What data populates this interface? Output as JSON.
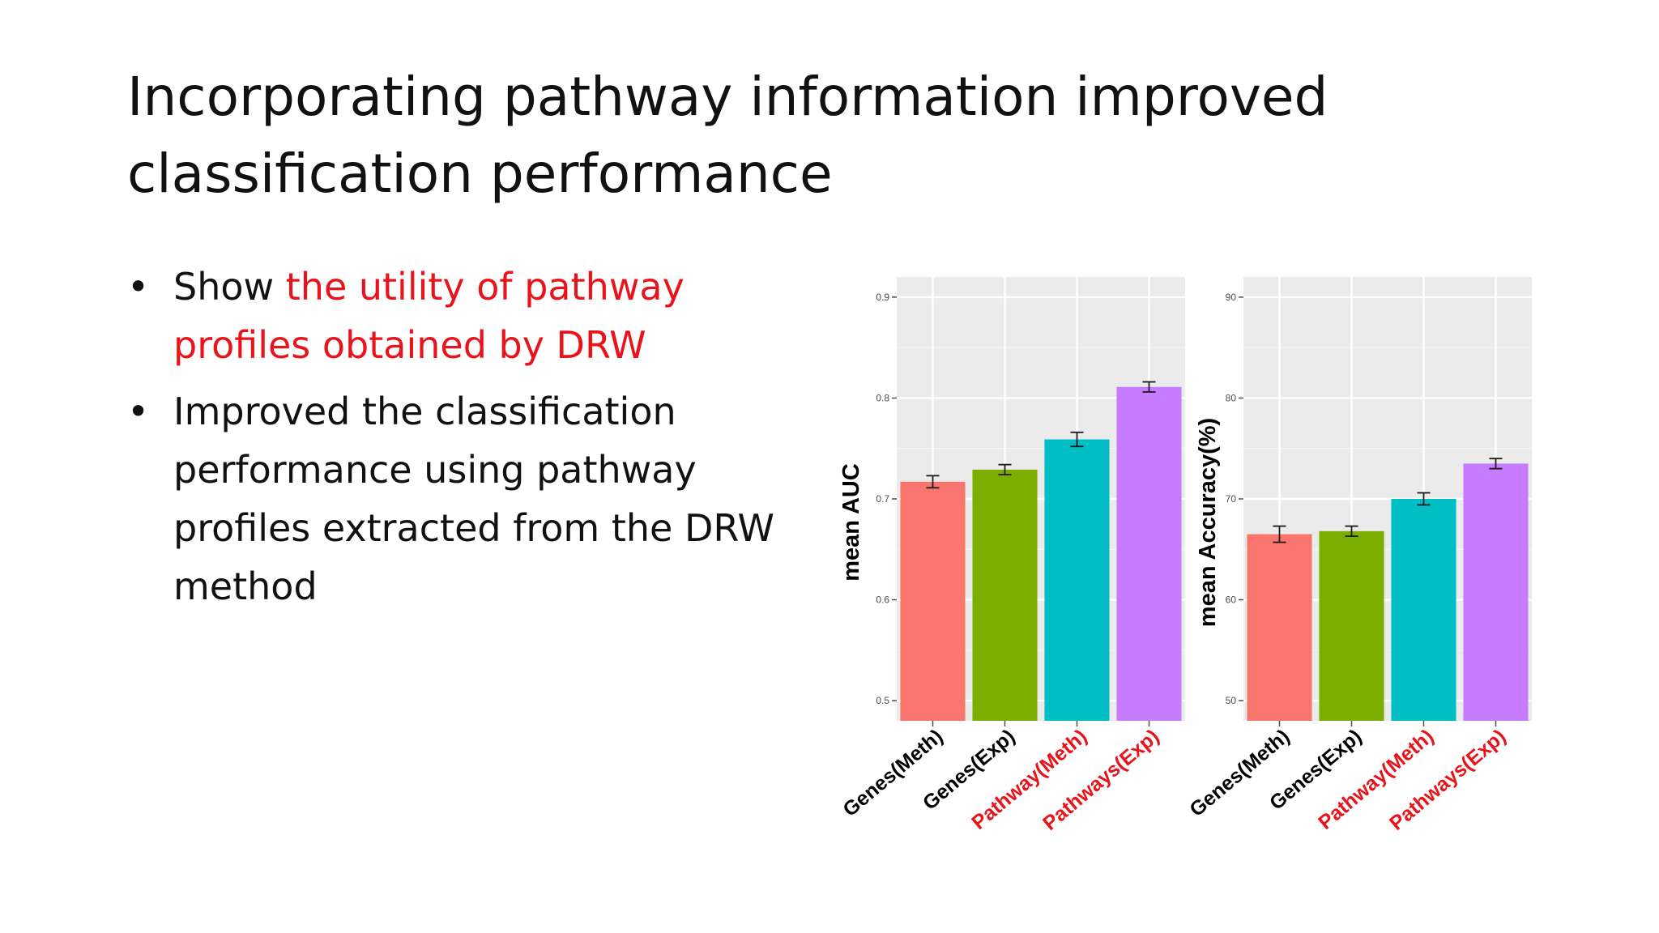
{
  "slide": {
    "title_lines": [
      "Incorporating pathway information improved",
      "classification performance"
    ],
    "bullets": [
      {
        "marker": "•",
        "segments": [
          {
            "text": "Show ",
            "color": "#111111"
          },
          {
            "text": "the utility of pathway profiles obtained by DRW",
            "color": "#e8141c"
          }
        ]
      },
      {
        "marker": "•",
        "segments": [
          {
            "text": "Improved the classification performance using pathway profiles extracted from the DRW method",
            "color": "#111111"
          }
        ]
      }
    ]
  },
  "chart_data": [
    {
      "type": "bar",
      "ylabel": "mean AUC",
      "ylim": [
        0.48,
        0.92
      ],
      "yticks": [
        0.5,
        0.6,
        0.7,
        0.8,
        0.9
      ],
      "ytick_labels": [
        "0.5",
        "0.6",
        "0.7",
        "0.8",
        "0.9"
      ],
      "categories": [
        "Genes(Meth)",
        "Genes(Exp)",
        "Pathway(Meth)",
        "Pathways(Exp)"
      ],
      "category_colors": [
        "#000000",
        "#000000",
        "#e8141c",
        "#e8141c"
      ],
      "values": [
        0.717,
        0.729,
        0.759,
        0.811
      ],
      "errors": [
        0.006,
        0.005,
        0.007,
        0.005
      ],
      "bar_colors": [
        "#f8766d",
        "#7cae00",
        "#00bfc4",
        "#c77cff"
      ],
      "grid": true
    },
    {
      "type": "bar",
      "ylabel": "mean Accuracy(%)",
      "ylim": [
        48,
        92
      ],
      "yticks": [
        50,
        60,
        70,
        80,
        90
      ],
      "ytick_labels": [
        "50",
        "60",
        "70",
        "80",
        "90"
      ],
      "categories": [
        "Genes(Meth)",
        "Genes(Exp)",
        "Pathway(Meth)",
        "Pathways(Exp)"
      ],
      "category_colors": [
        "#000000",
        "#000000",
        "#e8141c",
        "#e8141c"
      ],
      "values": [
        66.5,
        66.8,
        70.0,
        73.5
      ],
      "errors": [
        0.8,
        0.5,
        0.6,
        0.5
      ],
      "bar_colors": [
        "#f8766d",
        "#7cae00",
        "#00bfc4",
        "#c77cff"
      ],
      "grid": true
    }
  ]
}
